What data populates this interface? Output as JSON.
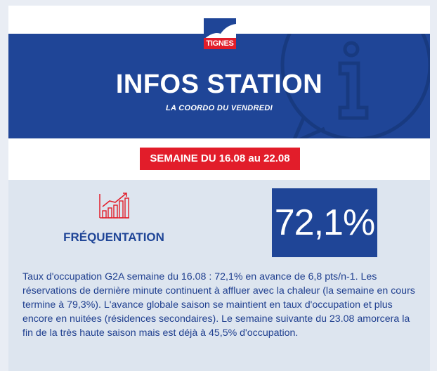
{
  "header": {
    "logo_text": "TIGNES",
    "title": "INFOS STATION",
    "subtitle": "LA COORDO DU VENDREDI"
  },
  "week_badge": "SEMAINE DU 16.08 au 22.08",
  "frequentation": {
    "label": "FRÉQUENTATION",
    "value": "72,1%",
    "description": "Taux d'occupation G2A semaine du 16.08 : 72,1% en avance de 6,8 pts/n-1. Les réservations de dernière minute continuent à affluer avec la chaleur (la semaine en cours termine à 79,3%). L'avance globale saison se maintient en taux d'occupation et plus encore en nuitées (résidences secondaires). Le semaine suivante du 23.08 amorcera la fin de la très haute saison mais est déjà à 45,5% d'occupation."
  },
  "colors": {
    "brand_blue": "#1f4597",
    "accent_red": "#e21d2a",
    "panel_bg": "#dde5ef"
  },
  "icons": [
    "info-icon",
    "tignes-logo",
    "growth-chart-icon"
  ]
}
